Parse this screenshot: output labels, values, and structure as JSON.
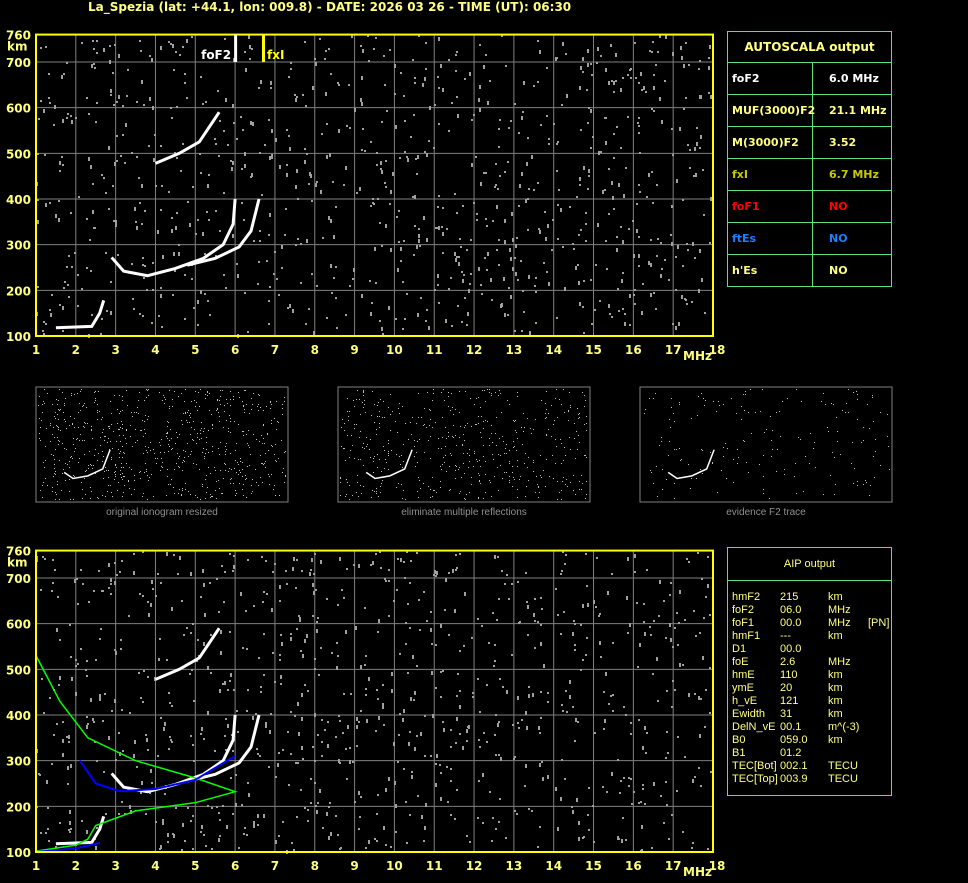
{
  "title": "La_Spezia (lat: +44.1, lon: 009.8) - DATE: 2026 03 26 - TIME (UT): 06:30",
  "axes": {
    "y_unit": "km",
    "x_unit": "MHz",
    "y_ticks": [
      100,
      200,
      300,
      400,
      500,
      600,
      700,
      760
    ],
    "x_ticks": [
      1,
      2,
      3,
      4,
      5,
      6,
      7,
      8,
      9,
      10,
      11,
      12,
      13,
      14,
      15,
      16,
      17,
      18
    ]
  },
  "markers": [
    {
      "label": "foF2",
      "freq": 6.0,
      "color": "#ffffff"
    },
    {
      "label": "fxI",
      "freq": 6.7,
      "color": "#ffff00"
    }
  ],
  "autoscala": {
    "title": "AUTOSCALA output",
    "rows": [
      {
        "key": "foF2",
        "value": "6.0 MHz",
        "color": "#ffffff"
      },
      {
        "key": "MUF(3000)F2",
        "value": "21.1 MHz",
        "color": "#ffff80"
      },
      {
        "key": "M(3000)F2",
        "value": "3.52",
        "color": "#ffff80"
      },
      {
        "key": "fxI",
        "value": "6.7 MHz",
        "color": "#c8c800"
      },
      {
        "key": "foF1",
        "value": "NO",
        "color": "#ff0000"
      },
      {
        "key": "ftEs",
        "value": "NO",
        "color": "#1e7fff"
      },
      {
        "key": "h'Es",
        "value": "NO",
        "color": "#ffff80"
      }
    ]
  },
  "thumbnails": [
    {
      "caption": "original ionogram resized"
    },
    {
      "caption": "eliminate multiple reflections"
    },
    {
      "caption": "evidence F2 trace"
    }
  ],
  "aip": {
    "title": "AIP output",
    "rows": [
      [
        "hmF2",
        "215",
        "km",
        ""
      ],
      [
        "foF2",
        "06.0",
        "MHz",
        ""
      ],
      [
        "foF1",
        "00.0",
        "MHz",
        "[PN]"
      ],
      [
        "hmF1",
        "---",
        "km",
        ""
      ],
      [
        "D1",
        "00.0",
        "",
        ""
      ],
      [
        "foE",
        "2.6",
        "MHz",
        ""
      ],
      [
        "hmE",
        "110",
        "km",
        ""
      ],
      [
        "ymE",
        "20",
        "km",
        ""
      ],
      [
        "h_vE",
        "121",
        "km",
        ""
      ],
      [
        "Ewidth",
        "31",
        "km",
        ""
      ],
      [
        "DelN_vE",
        "00.1",
        "m^(-3)",
        ""
      ],
      [
        "B0",
        "059.0",
        "km",
        ""
      ],
      [
        "B1",
        "01.2",
        "",
        ""
      ],
      [
        "TEC[Bot]",
        "002.1",
        "TECU",
        ""
      ],
      [
        "TEC[Top]",
        "003.9",
        "TECU",
        ""
      ]
    ]
  },
  "colors": {
    "frame": "#ffff00",
    "grid": "#808080",
    "o_trace": "#ffffff",
    "profile": "#00ff00",
    "fit": "#0000ff",
    "panel_border": "#60e080"
  }
}
